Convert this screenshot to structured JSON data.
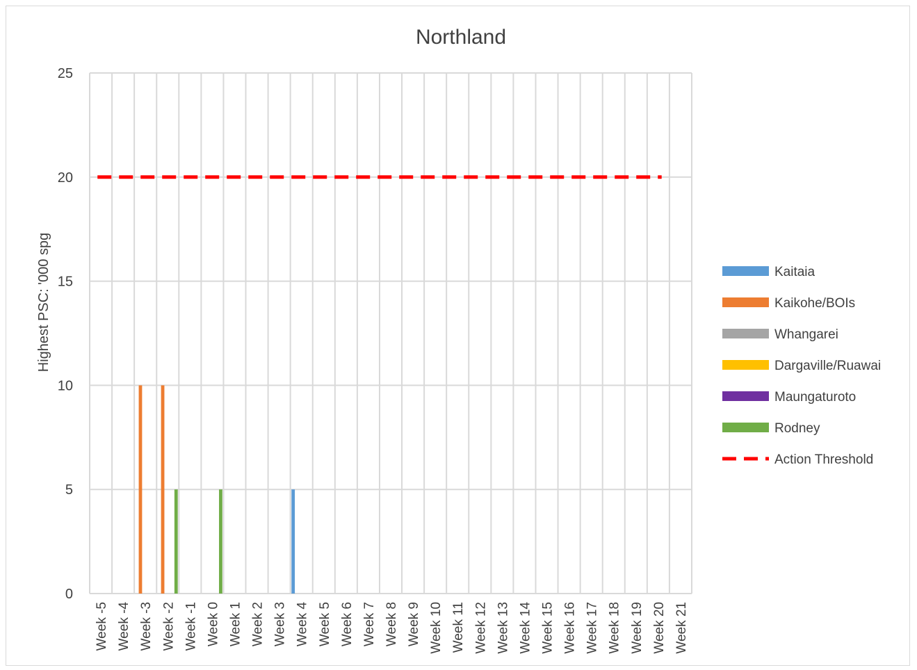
{
  "chart_data": {
    "type": "bar",
    "title": "Northland",
    "xlabel": "",
    "ylabel": "Highest PSC: '000 spg",
    "ylim": [
      0,
      25
    ],
    "yticks": [
      0,
      5,
      10,
      15,
      20,
      25
    ],
    "grid": true,
    "legend_position": "right",
    "categories": [
      "Week -5",
      "Week -4",
      "Week -3",
      "Week -2",
      "Week -1",
      "Week 0",
      "Week 1",
      "Week 2",
      "Week 3",
      "Week 4",
      "Week 5",
      "Week 6",
      "Week 7",
      "Week 8",
      "Week 9",
      "Week 10",
      "Week 11",
      "Week 12",
      "Week 13",
      "Week 14",
      "Week 15",
      "Week 16",
      "Week 17",
      "Week 18",
      "Week 19",
      "Week 20",
      "Week 21"
    ],
    "series": [
      {
        "name": "Kaitaia",
        "color": "#5b9bd5",
        "values": [
          0,
          0,
          0,
          0,
          0,
          0,
          0,
          0,
          0,
          5,
          0,
          0,
          0,
          0,
          0,
          0,
          0,
          0,
          0,
          0,
          0,
          0,
          0,
          0,
          0,
          0,
          0
        ]
      },
      {
        "name": "Kaikohe/BOIs",
        "color": "#ed7d31",
        "values": [
          0,
          0,
          10,
          10,
          0,
          0,
          0,
          0,
          0,
          0,
          0,
          0,
          0,
          0,
          0,
          0,
          0,
          0,
          0,
          0,
          0,
          0,
          0,
          0,
          0,
          0,
          0
        ]
      },
      {
        "name": "Whangarei",
        "color": "#a5a5a5",
        "values": [
          0,
          0,
          0,
          0,
          0,
          0,
          0,
          0,
          0,
          0,
          0,
          0,
          0,
          0,
          0,
          0,
          0,
          0,
          0,
          0,
          0,
          0,
          0,
          0,
          0,
          0,
          0
        ]
      },
      {
        "name": "Dargaville/Ruawai",
        "color": "#ffc000",
        "values": [
          0,
          0,
          0,
          0,
          0,
          0,
          0,
          0,
          0,
          0,
          0,
          0,
          0,
          0,
          0,
          0,
          0,
          0,
          0,
          0,
          0,
          0,
          0,
          0,
          0,
          0,
          0
        ]
      },
      {
        "name": "Maungaturoto",
        "color": "#7030a0",
        "values": [
          0,
          0,
          0,
          0,
          0,
          0,
          0,
          0,
          0,
          0,
          0,
          0,
          0,
          0,
          0,
          0,
          0,
          0,
          0,
          0,
          0,
          0,
          0,
          0,
          0,
          0,
          0
        ]
      },
      {
        "name": "Rodney",
        "color": "#70ad47",
        "values": [
          0,
          0,
          0,
          5,
          0,
          5,
          0,
          0,
          0,
          0,
          0,
          0,
          0,
          0,
          0,
          0,
          0,
          0,
          0,
          0,
          0,
          0,
          0,
          0,
          0,
          0,
          0
        ]
      }
    ],
    "threshold": {
      "name": "Action Threshold",
      "value": 20,
      "color": "#ff0000",
      "style": "dashed"
    }
  }
}
